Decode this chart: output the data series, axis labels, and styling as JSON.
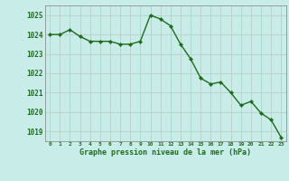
{
  "x_values": [
    0,
    1,
    2,
    3,
    4,
    5,
    6,
    7,
    8,
    9,
    10,
    11,
    12,
    13,
    14,
    15,
    16,
    17,
    18,
    19,
    20,
    21,
    22,
    23
  ],
  "y_values": [
    1024.0,
    1024.0,
    1024.25,
    1023.9,
    1023.65,
    1023.65,
    1023.65,
    1023.5,
    1023.5,
    1023.65,
    1025.0,
    1024.8,
    1024.45,
    1023.5,
    1022.75,
    1021.75,
    1021.45,
    1021.55,
    1021.0,
    1020.35,
    1020.55,
    1019.95,
    1019.6,
    1018.7
  ],
  "line_color": "#1e6b1e",
  "marker": "D",
  "marker_size": 2.2,
  "bg_color": "#c8ede8",
  "grid_color": "#b8cfc8",
  "xlabel": "Graphe pression niveau de la mer (hPa)",
  "xlabel_color": "#1e6b1e",
  "tick_color": "#1e6b1e",
  "ylim": [
    1018.5,
    1025.5
  ],
  "xlim": [
    -0.5,
    23.5
  ],
  "yticks": [
    1019,
    1020,
    1021,
    1022,
    1023,
    1024,
    1025
  ],
  "xtick_labels": [
    "0",
    "1",
    "2",
    "3",
    "4",
    "5",
    "6",
    "7",
    "8",
    "9",
    "10",
    "11",
    "12",
    "13",
    "14",
    "15",
    "16",
    "17",
    "18",
    "19",
    "20",
    "21",
    "22",
    "23"
  ],
  "linewidth": 1.0
}
